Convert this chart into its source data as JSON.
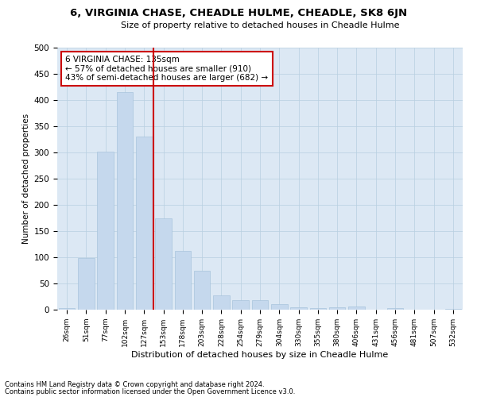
{
  "title": "6, VIRGINIA CHASE, CHEADLE HULME, CHEADLE, SK8 6JN",
  "subtitle": "Size of property relative to detached houses in Cheadle Hulme",
  "xlabel": "Distribution of detached houses by size in Cheadle Hulme",
  "ylabel": "Number of detached properties",
  "bar_color": "#c5d8ed",
  "bar_edge_color": "#a8c4dc",
  "grid_color": "#b8cfe0",
  "background_color": "#dce8f4",
  "annotation_line_color": "#cc0000",
  "annotation_box_color": "#cc0000",
  "annotation_text_line1": "6 VIRGINIA CHASE: 135sqm",
  "annotation_text_line2": "← 57% of detached houses are smaller (910)",
  "annotation_text_line3": "43% of semi-detached houses are larger (682) →",
  "categories": [
    "26sqm",
    "51sqm",
    "77sqm",
    "102sqm",
    "127sqm",
    "153sqm",
    "178sqm",
    "203sqm",
    "228sqm",
    "254sqm",
    "279sqm",
    "304sqm",
    "330sqm",
    "355sqm",
    "380sqm",
    "406sqm",
    "431sqm",
    "456sqm",
    "481sqm",
    "507sqm",
    "532sqm"
  ],
  "values": [
    3,
    99,
    301,
    415,
    330,
    175,
    112,
    75,
    28,
    18,
    18,
    10,
    5,
    3,
    4,
    6,
    0,
    3,
    0,
    0,
    2
  ],
  "ylim": [
    0,
    500
  ],
  "yticks": [
    0,
    50,
    100,
    150,
    200,
    250,
    300,
    350,
    400,
    450,
    500
  ],
  "vline_position": 4.5,
  "footer_line1": "Contains HM Land Registry data © Crown copyright and database right 2024.",
  "footer_line2": "Contains public sector information licensed under the Open Government Licence v3.0."
}
